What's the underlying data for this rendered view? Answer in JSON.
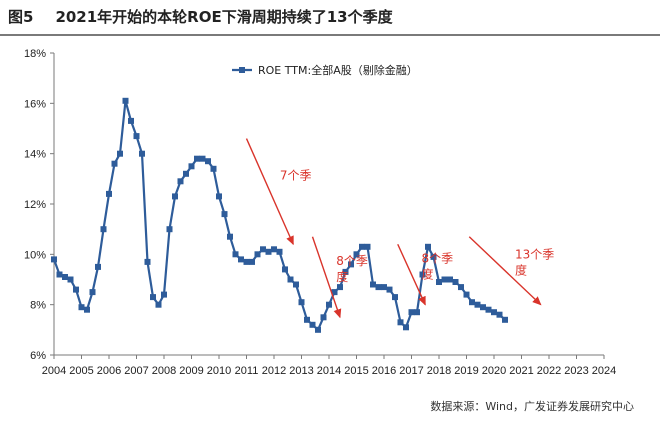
{
  "figure": {
    "number": "图5",
    "title": "2021年开始的本轮ROE下滑周期持续了13个季度",
    "source": "数据来源：Wind，广发证券发展研究中心"
  },
  "colors": {
    "series": "#2e5c9a",
    "arrow": "#d9342b",
    "axis": "#7a7a7a"
  },
  "chart_data": {
    "type": "line",
    "xlabel": "",
    "ylabel": "",
    "x_ticks": [
      2004,
      2005,
      2006,
      2007,
      2008,
      2009,
      2010,
      2011,
      2012,
      2013,
      2014,
      2015,
      2016,
      2017,
      2018,
      2019,
      2020,
      2021,
      2022,
      2023,
      2024
    ],
    "x_range": [
      2004,
      2024
    ],
    "ylim": [
      6,
      18
    ],
    "y_ticks": [
      6,
      8,
      10,
      12,
      14,
      16,
      18
    ],
    "y_tick_labels": [
      "6%",
      "8%",
      "10%",
      "12%",
      "14%",
      "16%",
      "18%"
    ],
    "legend": {
      "placement": "top-center"
    },
    "grid": false,
    "series": [
      {
        "name": "ROE TTM:全部A股（剔除金融）",
        "marker": "square",
        "points": [
          [
            2004.0,
            9.8
          ],
          [
            2004.2,
            9.2
          ],
          [
            2004.4,
            9.1
          ],
          [
            2004.6,
            9.0
          ],
          [
            2004.8,
            8.6
          ],
          [
            2005.0,
            7.9
          ],
          [
            2005.2,
            7.8
          ],
          [
            2005.4,
            8.5
          ],
          [
            2005.6,
            9.5
          ],
          [
            2005.8,
            11.0
          ],
          [
            2006.0,
            12.4
          ],
          [
            2006.2,
            13.6
          ],
          [
            2006.4,
            14.0
          ],
          [
            2006.6,
            16.1
          ],
          [
            2006.8,
            15.3
          ],
          [
            2007.0,
            14.7
          ],
          [
            2007.2,
            14.0
          ],
          [
            2007.4,
            9.7
          ],
          [
            2007.6,
            8.3
          ],
          [
            2007.8,
            8.0
          ],
          [
            2008.0,
            8.4
          ],
          [
            2008.2,
            11.0
          ],
          [
            2008.4,
            12.3
          ],
          [
            2008.6,
            12.9
          ],
          [
            2008.8,
            13.2
          ],
          [
            2009.0,
            13.5
          ],
          [
            2009.2,
            13.8
          ],
          [
            2009.4,
            13.8
          ],
          [
            2009.6,
            13.7
          ],
          [
            2009.8,
            13.4
          ],
          [
            2010.0,
            12.3
          ],
          [
            2010.2,
            11.6
          ],
          [
            2010.4,
            10.7
          ],
          [
            2010.6,
            10.0
          ],
          [
            2010.8,
            9.8
          ],
          [
            2011.0,
            9.7
          ],
          [
            2011.2,
            9.7
          ],
          [
            2011.4,
            10.0
          ],
          [
            2011.6,
            10.2
          ],
          [
            2011.8,
            10.1
          ],
          [
            2012.0,
            10.2
          ],
          [
            2012.2,
            10.1
          ],
          [
            2012.4,
            9.4
          ],
          [
            2012.6,
            9.0
          ],
          [
            2012.8,
            8.8
          ],
          [
            2013.0,
            8.1
          ],
          [
            2013.2,
            7.4
          ],
          [
            2013.4,
            7.2
          ],
          [
            2013.6,
            7.0
          ],
          [
            2013.8,
            7.5
          ],
          [
            2014.0,
            8.0
          ],
          [
            2014.2,
            8.5
          ],
          [
            2014.4,
            8.7
          ],
          [
            2014.6,
            9.3
          ],
          [
            2014.8,
            9.6
          ],
          [
            2015.0,
            10.0
          ],
          [
            2015.2,
            10.3
          ],
          [
            2015.4,
            10.3
          ],
          [
            2015.6,
            8.8
          ],
          [
            2015.8,
            8.7
          ],
          [
            2016.0,
            8.7
          ],
          [
            2016.2,
            8.6
          ],
          [
            2016.4,
            8.3
          ],
          [
            2016.6,
            7.3
          ],
          [
            2016.8,
            7.1
          ],
          [
            2017.0,
            7.7
          ],
          [
            2017.2,
            7.7
          ],
          [
            2017.4,
            9.2
          ],
          [
            2017.6,
            10.3
          ],
          [
            2017.8,
            9.9
          ],
          [
            2018.0,
            8.9
          ],
          [
            2018.2,
            9.0
          ],
          [
            2018.4,
            9.0
          ],
          [
            2018.6,
            8.9
          ],
          [
            2018.8,
            8.7
          ],
          [
            2019.0,
            8.4
          ],
          [
            2019.2,
            8.1
          ],
          [
            2019.4,
            8.0
          ],
          [
            2019.6,
            7.9
          ],
          [
            2019.8,
            7.8
          ],
          [
            2020.0,
            7.7
          ],
          [
            2020.2,
            7.6
          ],
          [
            2020.4,
            7.4
          ]
        ]
      }
    ],
    "annotations": [
      {
        "text_lines": [
          "7个季"
        ],
        "arrow_from": [
          2011.0,
          14.6
        ],
        "arrow_to": [
          2012.7,
          10.4
        ]
      },
      {
        "text_lines": [
          "8个季",
          "度"
        ],
        "arrow_from": [
          2013.4,
          10.7
        ],
        "arrow_to": [
          2014.4,
          7.5
        ]
      },
      {
        "text_lines": [
          "8个季",
          "度"
        ],
        "arrow_from": [
          2016.5,
          10.4
        ],
        "arrow_to": [
          2017.5,
          8.0
        ]
      },
      {
        "text_lines": [
          "13个季",
          "度"
        ],
        "arrow_from": [
          2019.1,
          10.7
        ],
        "arrow_to": [
          2021.7,
          8.0
        ]
      }
    ]
  }
}
